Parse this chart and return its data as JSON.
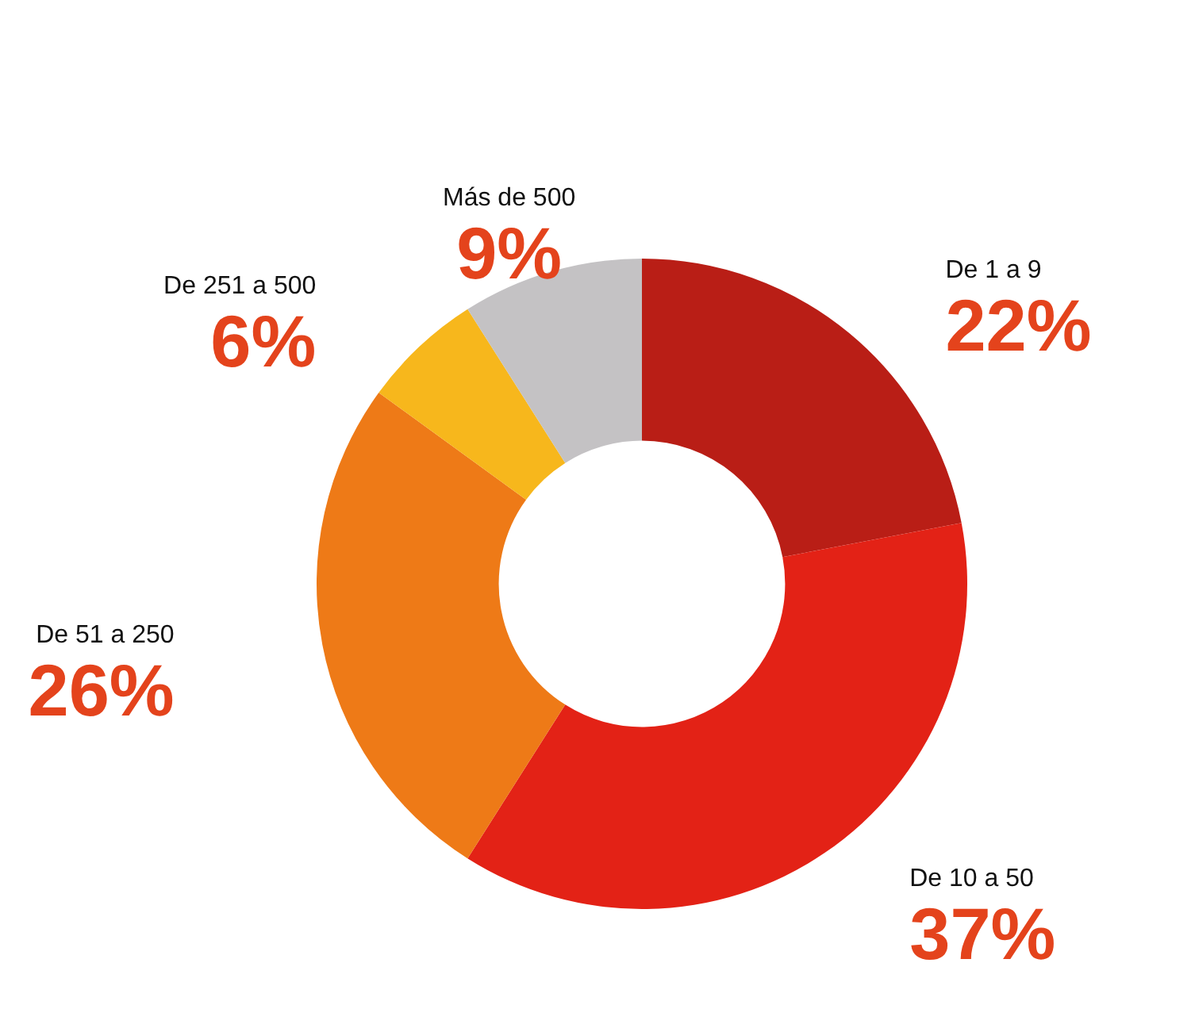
{
  "chart_data": {
    "type": "donut",
    "categories": [
      "De 1 a 9",
      "De 10 a 50",
      "De 51 a 250",
      "De 251 a 500",
      "Más de 500"
    ],
    "values": [
      22,
      37,
      26,
      6,
      9
    ],
    "colors": [
      "#b91e16",
      "#e32216",
      "#ee7a17",
      "#f7b71c",
      "#c4c2c4"
    ],
    "value_labels": [
      "22%",
      "37%",
      "26%",
      "6%",
      "9%"
    ],
    "legend": false
  }
}
